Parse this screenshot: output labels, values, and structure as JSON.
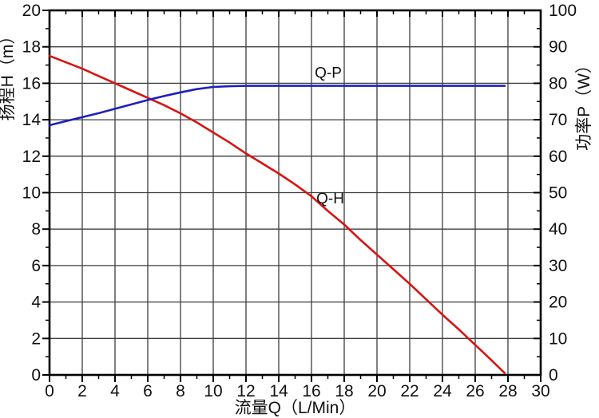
{
  "chart_data": {
    "type": "line",
    "title": "",
    "background": "#ffffff",
    "frame_color": "#000000",
    "grid": true,
    "grid_color": "#3d3d3d",
    "x_axis": {
      "label": "流量Q（L/Min）",
      "min": 0,
      "max": 30,
      "major_step": 2,
      "minor_step": 1,
      "tick_labels": [
        "0",
        "2",
        "4",
        "6",
        "8",
        "10",
        "12",
        "14",
        "16",
        "18",
        "20",
        "22",
        "24",
        "26",
        "28",
        "30"
      ]
    },
    "y_axis_left": {
      "label": "扬程H（m）",
      "min": 0,
      "max": 20,
      "major_step": 2,
      "minor_step": 1,
      "tick_labels": [
        "0",
        "2",
        "4",
        "6",
        "8",
        "10",
        "12",
        "14",
        "16",
        "18",
        "20"
      ]
    },
    "y_axis_right": {
      "label": "功率P（W）",
      "min": 0,
      "max": 100,
      "major_step": 10,
      "minor_step": 5,
      "tick_labels": [
        "0",
        "10",
        "20",
        "30",
        "40",
        "50",
        "60",
        "70",
        "80",
        "90",
        "100"
      ]
    },
    "series": [
      {
        "name": "Q-H",
        "axis": "left",
        "color": "#d81410",
        "points": [
          [
            0,
            17.5
          ],
          [
            1,
            17.15
          ],
          [
            2,
            16.8
          ],
          [
            3,
            16.4
          ],
          [
            4,
            16.0
          ],
          [
            5,
            15.6
          ],
          [
            6,
            15.2
          ],
          [
            7,
            14.8
          ],
          [
            8,
            14.35
          ],
          [
            9,
            13.85
          ],
          [
            10,
            13.3
          ],
          [
            11,
            12.75
          ],
          [
            12,
            12.15
          ],
          [
            13,
            11.6
          ],
          [
            14,
            11.05
          ],
          [
            15,
            10.45
          ],
          [
            16,
            9.8
          ],
          [
            17,
            9.0
          ],
          [
            18,
            8.25
          ],
          [
            19,
            7.4
          ],
          [
            20,
            6.6
          ],
          [
            21,
            5.8
          ],
          [
            22,
            5.0
          ],
          [
            23,
            4.15
          ],
          [
            24,
            3.3
          ],
          [
            25,
            2.5
          ],
          [
            26,
            1.65
          ],
          [
            27,
            0.8
          ],
          [
            27.8,
            0.1
          ]
        ]
      },
      {
        "name": "Q-P",
        "axis": "right",
        "color": "#1f1fbe",
        "points": [
          [
            0,
            68.5
          ],
          [
            1,
            69.6
          ],
          [
            2,
            70.7
          ],
          [
            3,
            71.8
          ],
          [
            4,
            73.0
          ],
          [
            5,
            74.2
          ],
          [
            6,
            75.4
          ],
          [
            7,
            76.5
          ],
          [
            8,
            77.5
          ],
          [
            9,
            78.4
          ],
          [
            10,
            79.0
          ],
          [
            11,
            79.2
          ],
          [
            12,
            79.3
          ],
          [
            14,
            79.3
          ],
          [
            16,
            79.3
          ],
          [
            18,
            79.3
          ],
          [
            20,
            79.3
          ],
          [
            22,
            79.3
          ],
          [
            24,
            79.3
          ],
          [
            26,
            79.3
          ],
          [
            27.8,
            79.3
          ]
        ]
      }
    ],
    "annotations": [
      {
        "text": "Q-P",
        "x": 16.2,
        "y": 81.5,
        "axis": "right"
      },
      {
        "text": "Q-H",
        "x": 16.3,
        "y": 9.4,
        "axis": "left"
      }
    ]
  }
}
